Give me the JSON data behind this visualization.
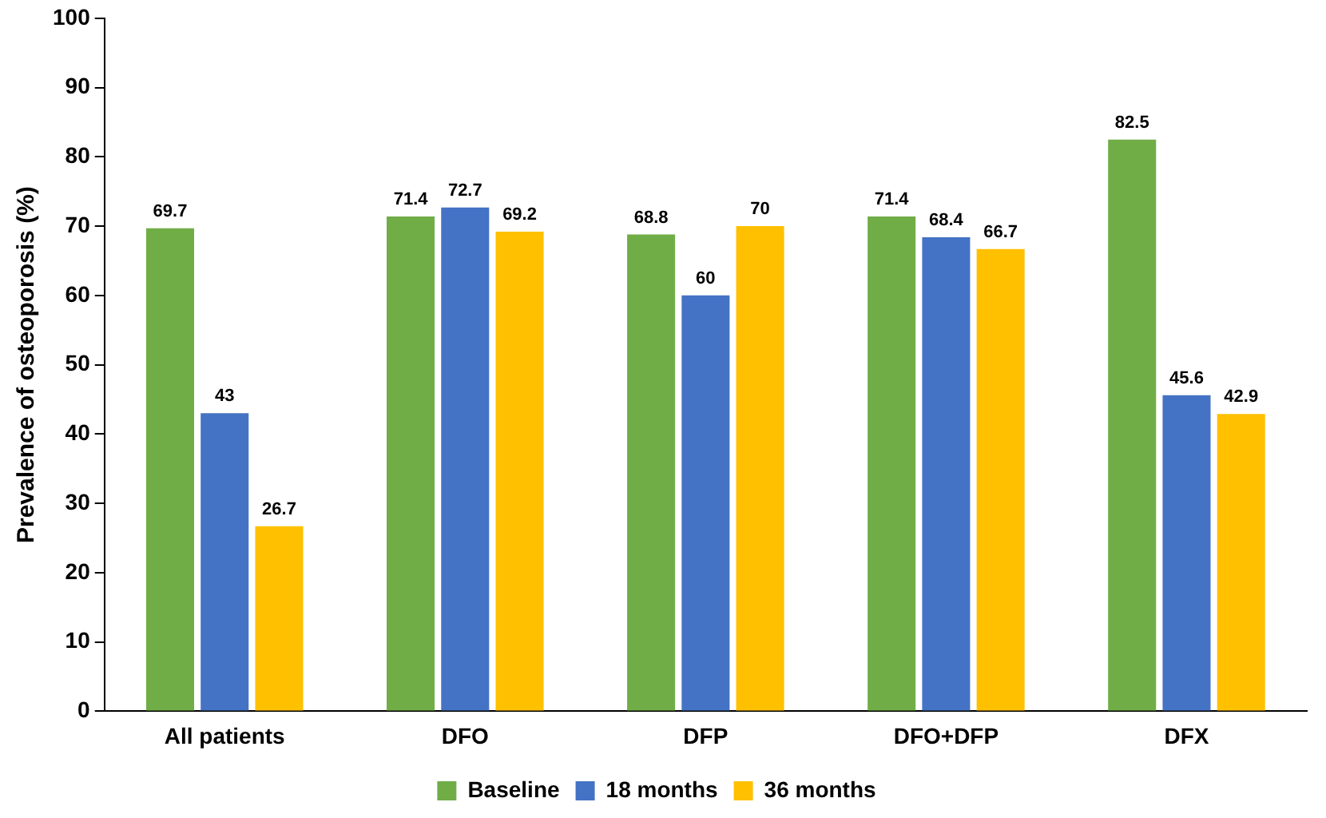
{
  "chart_data": {
    "type": "bar",
    "ylabel": "Prevalence of osteoporosis (%)",
    "categories": [
      "All patients",
      "DFO",
      "DFP",
      "DFO+DFP",
      "DFX"
    ],
    "series": [
      {
        "name": "Baseline",
        "color": "#70ad47",
        "values": [
          69.7,
          71.4,
          68.8,
          71.4,
          82.5
        ]
      },
      {
        "name": "18 months",
        "color": "#4472c4",
        "values": [
          43,
          72.7,
          60,
          68.4,
          45.6
        ]
      },
      {
        "name": "36 months",
        "color": "#ffc000",
        "values": [
          26.7,
          69.2,
          70,
          66.7,
          42.9
        ]
      }
    ],
    "ylim": [
      0,
      100
    ],
    "yticks": [
      0,
      10,
      20,
      30,
      40,
      50,
      60,
      70,
      80,
      90,
      100
    ],
    "grid": false,
    "legend": "bottom",
    "data_labels": true
  }
}
